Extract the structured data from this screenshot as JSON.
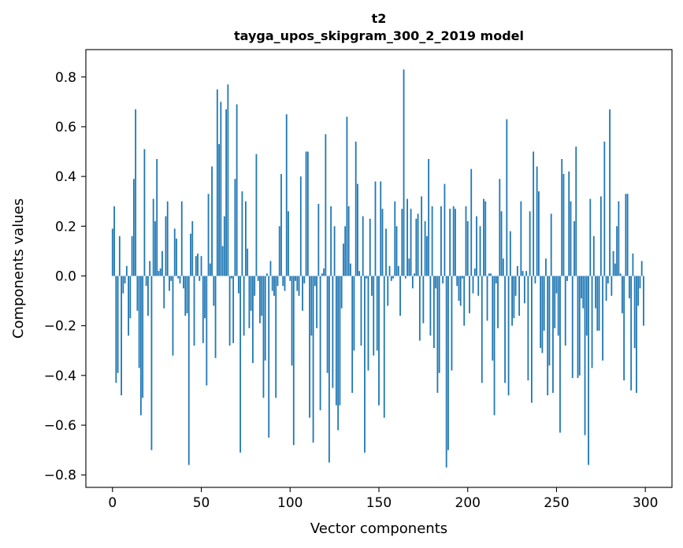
{
  "chart_data": {
    "type": "bar",
    "title": "t2",
    "subtitle": "tayga_upos_skipgram_300_2_2019 model",
    "xlabel": "Vector components",
    "ylabel": "Components values",
    "xlim": [
      -15,
      315
    ],
    "ylim": [
      -0.85,
      0.91
    ],
    "xticks": [
      0,
      50,
      100,
      150,
      200,
      250,
      300
    ],
    "xtick_labels": [
      "0",
      "50",
      "100",
      "150",
      "200",
      "250",
      "300"
    ],
    "yticks": [
      -0.8,
      -0.6,
      -0.4,
      -0.2,
      0.0,
      0.2,
      0.4,
      0.6,
      0.8
    ],
    "ytick_labels": [
      "−0.8",
      "−0.6",
      "−0.4",
      "−0.2",
      "0.0",
      "0.2",
      "0.4",
      "0.6",
      "0.8"
    ],
    "grid": false,
    "bar_color": "#1f77b4",
    "series": [
      {
        "values": [
          0.19,
          0.28,
          -0.43,
          -0.39,
          0.16,
          -0.48,
          -0.07,
          -0.03,
          0.04,
          -0.24,
          -0.17,
          0.16,
          0.39,
          0.67,
          -0.14,
          -0.37,
          -0.56,
          -0.49,
          0.51,
          -0.04,
          -0.16,
          0.06,
          -0.7,
          0.31,
          0.22,
          0.47,
          0.02,
          0.03,
          0.1,
          -0.13,
          0.24,
          0.3,
          -0.06,
          -0.02,
          -0.32,
          0.19,
          0.15,
          -0.01,
          -0.03,
          0.3,
          -0.05,
          -0.16,
          -0.15,
          -0.76,
          0.17,
          0.22,
          -0.28,
          0.08,
          0.09,
          -0.02,
          0.08,
          -0.27,
          -0.17,
          -0.44,
          0.33,
          0.05,
          0.44,
          -0.12,
          -0.33,
          0.75,
          0.53,
          0.7,
          0.12,
          0.24,
          0.67,
          0.77,
          -0.28,
          -0.01,
          -0.27,
          0.39,
          0.69,
          -0.07,
          -0.71,
          0.34,
          -0.24,
          0.3,
          0.11,
          -0.21,
          -0.14,
          -0.35,
          -0.08,
          0.49,
          -0.02,
          -0.19,
          -0.16,
          -0.49,
          -0.34,
          0.01,
          -0.65,
          0.06,
          -0.06,
          -0.08,
          -0.49,
          -0.04,
          0.2,
          0.41,
          -0.04,
          -0.06,
          0.65,
          0.26,
          -0.02,
          -0.36,
          -0.68,
          -0.02,
          -0.06,
          -0.08,
          0.4,
          -0.14,
          -0.03,
          0.5,
          0.5,
          -0.57,
          -0.24,
          -0.67,
          -0.04,
          -0.21,
          0.29,
          -0.54,
          0.01,
          0.03,
          0.57,
          -0.39,
          -0.75,
          0.28,
          -0.45,
          0.2,
          -0.52,
          -0.62,
          -0.52,
          -0.13,
          0.13,
          0.2,
          0.64,
          0.28,
          0.05,
          -0.47,
          -0.3,
          0.54,
          0.37,
          0.02,
          -0.28,
          0.24,
          -0.71,
          -0.01,
          -0.38,
          0.23,
          -0.08,
          -0.32,
          0.38,
          -0.3,
          -0.52,
          0.38,
          0.27,
          -0.57,
          0.19,
          -0.12,
          0.04,
          -0.02,
          -0.01,
          0.3,
          0.2,
          0.04,
          -0.16,
          0.27,
          0.83,
          -0.01,
          0.31,
          0.07,
          0.27,
          -0.05,
          0.01,
          0.23,
          0.25,
          -0.26,
          0.32,
          -0.19,
          0.22,
          0.16,
          0.47,
          -0.24,
          0.28,
          -0.29,
          -0.05,
          -0.47,
          -0.39,
          0.28,
          -0.03,
          0.37,
          -0.77,
          -0.7,
          0.27,
          -0.38,
          0.28,
          0.27,
          -0.04,
          -0.1,
          -0.12,
          -0.01,
          -0.2,
          0.28,
          0.22,
          -0.15,
          0.43,
          -0.07,
          0.03,
          0.24,
          -0.08,
          0.2,
          -0.43,
          0.31,
          0.3,
          -0.18,
          0.01,
          0.01,
          -0.34,
          -0.56,
          -0.03,
          -0.21,
          0.39,
          0.26,
          0.07,
          -0.43,
          0.63,
          -0.48,
          0.18,
          -0.2,
          -0.17,
          -0.08,
          0.04,
          -0.16,
          0.3,
          0.02,
          -0.11,
          0.02,
          -0.42,
          0.26,
          -0.51,
          0.5,
          -0.03,
          0.44,
          0.34,
          -0.29,
          -0.31,
          -0.22,
          0.07,
          -0.48,
          -0.36,
          0.25,
          -0.47,
          -0.21,
          -0.07,
          -0.24,
          -0.63,
          0.47,
          0.41,
          -0.28,
          -0.02,
          0.42,
          0.3,
          -0.41,
          0.22,
          0.52,
          -0.41,
          -0.4,
          -0.09,
          -0.13,
          -0.64,
          -0.24,
          -0.76,
          0.31,
          -0.37,
          0.16,
          -0.13,
          -0.22,
          -0.22,
          0.32,
          -0.34,
          0.54,
          -0.1,
          -0.03,
          0.67,
          -0.08,
          0.1,
          0.05,
          0.2,
          0.3,
          0.01,
          -0.15,
          -0.42,
          0.33,
          0.33,
          -0.09,
          -0.46,
          0.09,
          -0.29,
          -0.47,
          -0.12,
          -0.05,
          0.06,
          -0.2
        ]
      }
    ]
  }
}
